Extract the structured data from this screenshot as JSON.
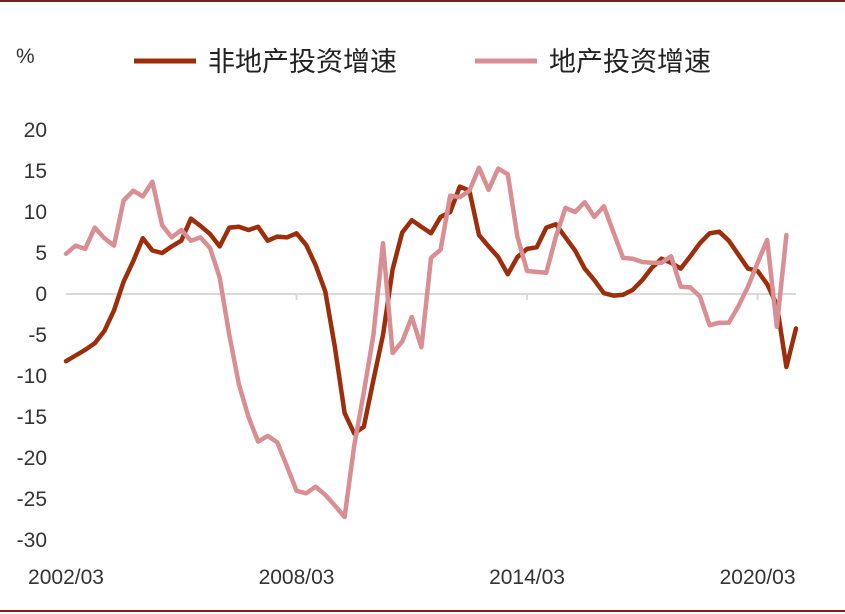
{
  "chart_data": {
    "type": "line",
    "title": "",
    "xlabel": "",
    "ylabel": "%",
    "ylim": [
      -30,
      20
    ],
    "y_ticks": [
      "20",
      "15",
      "10",
      "5",
      "0",
      "-5",
      "-10",
      "-15",
      "-20",
      "-25",
      "-30"
    ],
    "x_ticks": [
      "2002/03",
      "2008/03",
      "2014/03",
      "2020/03"
    ],
    "grid": false,
    "legend": "top",
    "series": [
      {
        "name": "非地产投资增速",
        "color": "#9c2e0b",
        "points": [
          [
            "2002/03",
            -8.2
          ],
          [
            "2002/06",
            -7.5
          ],
          [
            "2002/09",
            -6.8
          ],
          [
            "2002/12",
            -6.0
          ],
          [
            "2003/03",
            -4.5
          ],
          [
            "2003/06",
            -2.0
          ],
          [
            "2003/09",
            1.5
          ],
          [
            "2003/12",
            4.0
          ],
          [
            "2004/03",
            6.8
          ],
          [
            "2004/06",
            5.3
          ],
          [
            "2004/09",
            5.0
          ],
          [
            "2004/12",
            5.8
          ],
          [
            "2005/03",
            6.5
          ],
          [
            "2005/06",
            9.2
          ],
          [
            "2005/09",
            8.3
          ],
          [
            "2005/12",
            7.3
          ],
          [
            "2006/03",
            5.8
          ],
          [
            "2006/06",
            8.1
          ],
          [
            "2006/09",
            8.2
          ],
          [
            "2006/12",
            7.8
          ],
          [
            "2007/03",
            8.2
          ],
          [
            "2007/06",
            6.5
          ],
          [
            "2007/09",
            7.0
          ],
          [
            "2007/12",
            6.9
          ],
          [
            "2008/03",
            7.4
          ],
          [
            "2008/06",
            6.0
          ],
          [
            "2008/09",
            3.5
          ],
          [
            "2008/12",
            0.3
          ],
          [
            "2009/03",
            -6.5
          ],
          [
            "2009/06",
            -14.5
          ],
          [
            "2009/09",
            -17.0
          ],
          [
            "2009/12",
            -16.2
          ],
          [
            "2010/03",
            -10.5
          ],
          [
            "2010/06",
            -5.0
          ],
          [
            "2010/09",
            3.0
          ],
          [
            "2010/12",
            7.5
          ],
          [
            "2011/03",
            9.0
          ],
          [
            "2011/06",
            8.2
          ],
          [
            "2011/09",
            7.4
          ],
          [
            "2011/12",
            9.4
          ],
          [
            "2012/03",
            10.0
          ],
          [
            "2012/06",
            13.1
          ],
          [
            "2012/09",
            12.6
          ],
          [
            "2012/12",
            7.2
          ],
          [
            "2013/03",
            5.8
          ],
          [
            "2013/06",
            4.5
          ],
          [
            "2013/09",
            2.4
          ],
          [
            "2013/12",
            4.5
          ],
          [
            "2014/03",
            5.5
          ],
          [
            "2014/06",
            5.7
          ],
          [
            "2014/09",
            8.1
          ],
          [
            "2014/12",
            8.5
          ],
          [
            "2015/03",
            6.9
          ],
          [
            "2015/06",
            5.3
          ],
          [
            "2015/09",
            3.1
          ],
          [
            "2015/12",
            1.7
          ],
          [
            "2016/03",
            0.1
          ],
          [
            "2016/06",
            -0.2
          ],
          [
            "2016/09",
            -0.1
          ],
          [
            "2016/12",
            0.5
          ],
          [
            "2017/03",
            1.7
          ],
          [
            "2017/06",
            3.2
          ],
          [
            "2017/09",
            4.3
          ],
          [
            "2017/12",
            3.8
          ],
          [
            "2018/03",
            3.1
          ],
          [
            "2018/06",
            4.6
          ],
          [
            "2018/09",
            6.2
          ],
          [
            "2018/12",
            7.4
          ],
          [
            "2019/03",
            7.6
          ],
          [
            "2019/06",
            6.5
          ],
          [
            "2019/09",
            4.8
          ],
          [
            "2019/12",
            3.1
          ],
          [
            "2020/03",
            2.8
          ],
          [
            "2020/06",
            1.2
          ],
          [
            "2020/09",
            -1.3
          ],
          [
            "2020/12",
            -8.9
          ],
          [
            "2021/03",
            -4.2
          ]
        ]
      },
      {
        "name": "地产投资增速",
        "color": "#d88e92",
        "points": [
          [
            "2002/03",
            4.9
          ],
          [
            "2002/06",
            5.9
          ],
          [
            "2002/09",
            5.5
          ],
          [
            "2002/12",
            8.1
          ],
          [
            "2003/03",
            6.8
          ],
          [
            "2003/06",
            5.9
          ],
          [
            "2003/09",
            11.4
          ],
          [
            "2003/12",
            12.6
          ],
          [
            "2004/03",
            11.9
          ],
          [
            "2004/06",
            13.7
          ],
          [
            "2004/09",
            8.4
          ],
          [
            "2004/12",
            6.9
          ],
          [
            "2005/03",
            7.8
          ],
          [
            "2005/06",
            6.5
          ],
          [
            "2005/09",
            6.9
          ],
          [
            "2005/12",
            5.6
          ],
          [
            "2006/03",
            2.0
          ],
          [
            "2006/06",
            -5.0
          ],
          [
            "2006/09",
            -11.0
          ],
          [
            "2006/12",
            -15.0
          ],
          [
            "2007/03",
            -18.0
          ],
          [
            "2007/06",
            -17.3
          ],
          [
            "2007/09",
            -18.1
          ],
          [
            "2007/12",
            -21.0
          ],
          [
            "2008/03",
            -24.0
          ],
          [
            "2008/06",
            -24.3
          ],
          [
            "2008/09",
            -23.5
          ],
          [
            "2008/12",
            -24.5
          ],
          [
            "2009/03",
            -25.8
          ],
          [
            "2009/06",
            -27.2
          ],
          [
            "2009/09",
            -18.5
          ],
          [
            "2009/12",
            -12.0
          ],
          [
            "2010/03",
            -5.0
          ],
          [
            "2010/06",
            6.2
          ],
          [
            "2010/09",
            -7.2
          ],
          [
            "2010/12",
            -5.8
          ],
          [
            "2011/03",
            -2.8
          ],
          [
            "2011/06",
            -6.5
          ],
          [
            "2011/09",
            4.4
          ],
          [
            "2011/12",
            5.4
          ],
          [
            "2012/03",
            12.0
          ],
          [
            "2012/06",
            11.8
          ],
          [
            "2012/09",
            12.6
          ],
          [
            "2012/12",
            15.4
          ],
          [
            "2013/03",
            12.7
          ],
          [
            "2013/06",
            15.3
          ],
          [
            "2013/09",
            14.6
          ],
          [
            "2013/12",
            7.0
          ],
          [
            "2014/03",
            2.8
          ],
          [
            "2014/06",
            2.7
          ],
          [
            "2014/09",
            2.6
          ],
          [
            "2014/12",
            7.0
          ],
          [
            "2015/03",
            10.5
          ],
          [
            "2015/06",
            10.0
          ],
          [
            "2015/09",
            11.2
          ],
          [
            "2015/12",
            9.4
          ],
          [
            "2016/03",
            10.7
          ],
          [
            "2016/06",
            7.5
          ],
          [
            "2016/09",
            4.4
          ],
          [
            "2016/12",
            4.3
          ],
          [
            "2017/03",
            3.9
          ],
          [
            "2017/06",
            3.8
          ],
          [
            "2017/09",
            3.8
          ],
          [
            "2017/12",
            4.6
          ],
          [
            "2018/03",
            0.9
          ],
          [
            "2018/06",
            0.8
          ],
          [
            "2018/09",
            -0.3
          ],
          [
            "2018/12",
            -3.8
          ],
          [
            "2019/03",
            -3.5
          ],
          [
            "2019/06",
            -3.5
          ],
          [
            "2019/09",
            -1.5
          ],
          [
            "2019/12",
            0.9
          ],
          [
            "2020/03",
            3.8
          ],
          [
            "2020/06",
            6.6
          ],
          [
            "2020/09",
            -4.0
          ],
          [
            "2020/12",
            7.2
          ]
        ]
      }
    ]
  }
}
